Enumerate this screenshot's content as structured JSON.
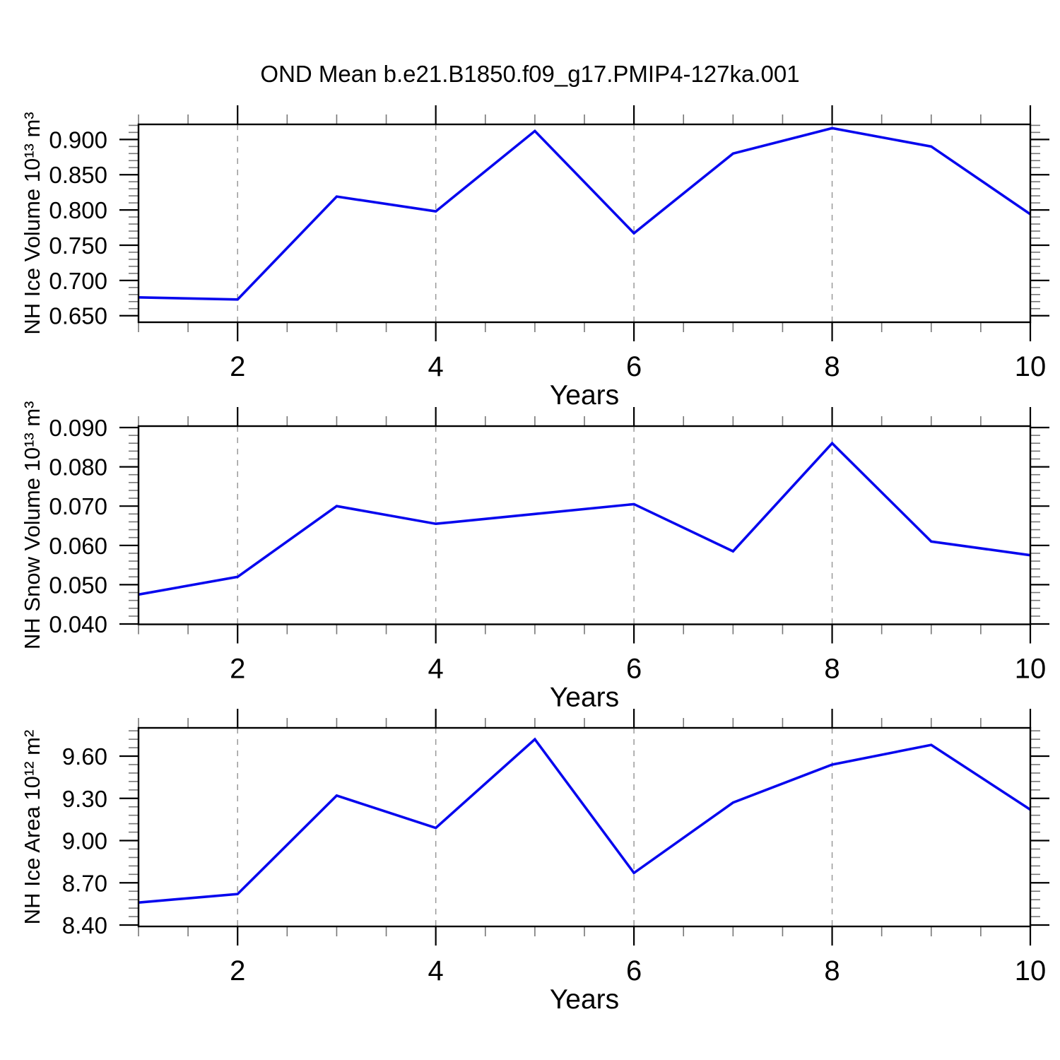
{
  "title": "OND Mean b.e21.B1850.f09_g17.PMIP4-127ka.001",
  "figure": {
    "background": "#ffffff",
    "line_color": "#0707ee",
    "grid_color": "#999999",
    "axis_color": "#000000",
    "minor_tick_color": "#777777"
  },
  "chart_data": [
    {
      "type": "line",
      "name": "nh-ice-volume",
      "xlabel": "Years",
      "ylabel": "NH Ice Volume 10¹³ m³",
      "x": [
        1,
        2,
        3,
        4,
        5,
        6,
        7,
        8,
        9,
        10
      ],
      "values": [
        0.676,
        0.673,
        0.819,
        0.798,
        0.912,
        0.767,
        0.88,
        0.916,
        0.89,
        0.794
      ],
      "xlim": [
        1,
        10
      ],
      "ylim": [
        0.6407,
        0.9214
      ],
      "xticks": [
        2,
        4,
        6,
        8,
        10
      ],
      "xtick_labels": [
        "2",
        "4",
        "6",
        "8",
        "10"
      ],
      "xtick_minor_step": 0.5,
      "yticks": [
        0.65,
        0.7,
        0.75,
        0.8,
        0.85,
        0.9
      ],
      "ytick_labels": [
        "0.650",
        "0.700",
        "0.750",
        "0.800",
        "0.850",
        "0.900"
      ],
      "ytick_minor_step": 0.01,
      "grid_x": [
        2,
        4,
        6,
        8
      ],
      "grid_style": "dashed",
      "legend": "none",
      "line_color": "#0707ee"
    },
    {
      "type": "line",
      "name": "nh-snow-volume",
      "xlabel": "Years",
      "ylabel": "NH Snow Volume 10¹³ m³",
      "x": [
        1,
        2,
        3,
        4,
        5,
        6,
        7,
        8,
        9,
        10
      ],
      "values": [
        0.0475,
        0.052,
        0.07,
        0.0655,
        0.068,
        0.0705,
        0.0585,
        0.086,
        0.061,
        0.0575
      ],
      "xlim": [
        1,
        10
      ],
      "ylim": [
        0.03991,
        0.09036
      ],
      "xticks": [
        2,
        4,
        6,
        8,
        10
      ],
      "xtick_labels": [
        "2",
        "4",
        "6",
        "8",
        "10"
      ],
      "xtick_minor_step": 0.5,
      "yticks": [
        0.04,
        0.05,
        0.06,
        0.07,
        0.08,
        0.09
      ],
      "ytick_labels": [
        "0.040",
        "0.050",
        "0.060",
        "0.070",
        "0.080",
        "0.090"
      ],
      "ytick_minor_step": 0.002,
      "grid_x": [
        2,
        4,
        6,
        8
      ],
      "grid_style": "dashed",
      "legend": "none",
      "line_color": "#0707ee"
    },
    {
      "type": "line",
      "name": "nh-ice-area",
      "xlabel": "Years",
      "ylabel": "NH Ice Area 10¹² m²",
      "x": [
        1,
        2,
        3,
        4,
        5,
        6,
        7,
        8,
        9,
        10
      ],
      "values": [
        8.56,
        8.62,
        9.32,
        9.09,
        9.72,
        8.77,
        9.27,
        9.54,
        9.68,
        9.22
      ],
      "xlim": [
        1,
        10
      ],
      "ylim": [
        8.39,
        9.801
      ],
      "xticks": [
        2,
        4,
        6,
        8,
        10
      ],
      "xtick_labels": [
        "2",
        "4",
        "6",
        "8",
        "10"
      ],
      "xtick_minor_step": 0.5,
      "yticks": [
        8.4,
        8.7,
        9.0,
        9.3,
        9.6
      ],
      "ytick_labels": [
        "8.40",
        "8.70",
        "9.00",
        "9.30",
        "9.60"
      ],
      "ytick_minor_step": 0.06,
      "grid_x": [
        2,
        4,
        6,
        8
      ],
      "grid_style": "dashed",
      "legend": "none",
      "line_color": "#0707ee"
    }
  ]
}
